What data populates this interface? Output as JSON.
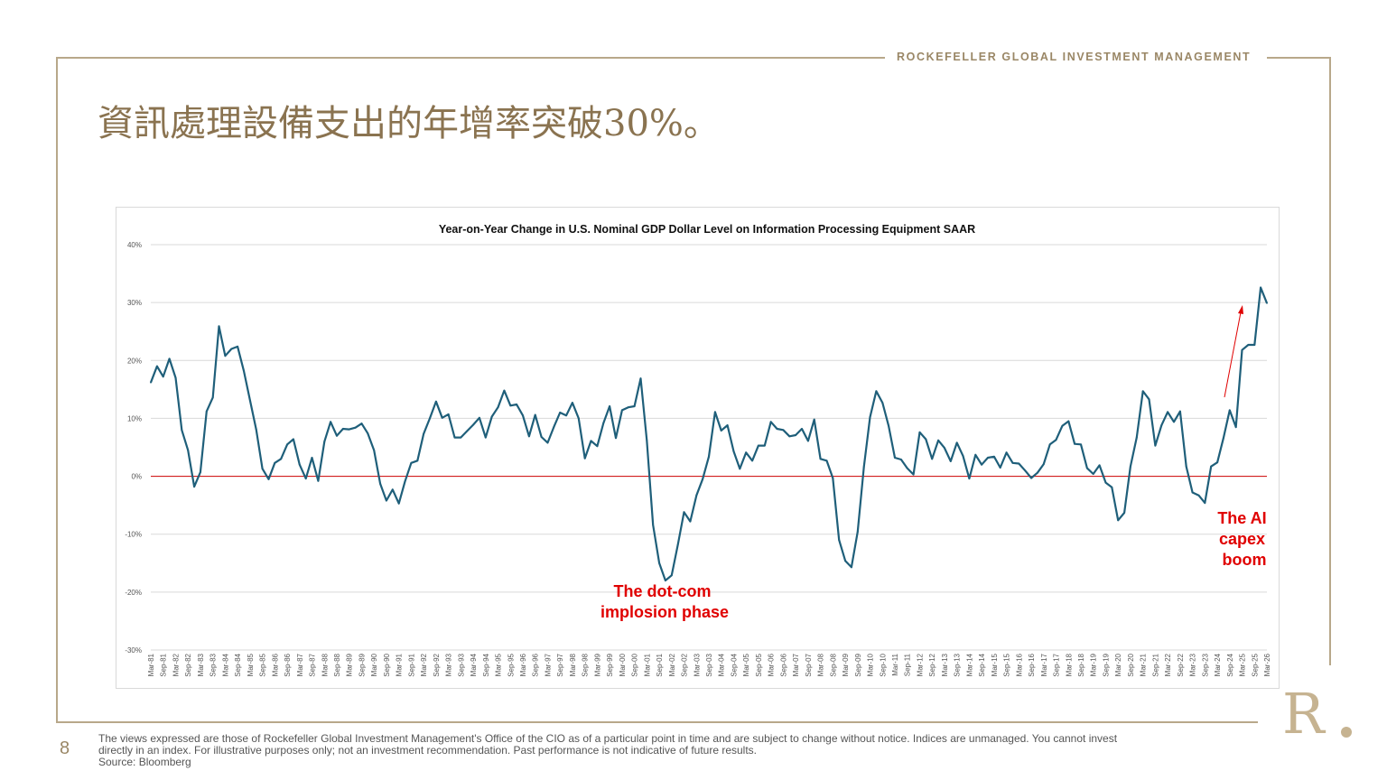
{
  "header": {
    "brand": "ROCKEFELLER GLOBAL INVESTMENT MANAGEMENT",
    "title": "資訊處理設備支出的年增率突破30%。"
  },
  "footer": {
    "page_number": "8",
    "disclaimer_line1": "The views expressed are those of Rockefeller Global Investment Management's Office of the CIO as of a particular point in time and are subject to change without notice. Indices are unmanaged. You cannot invest",
    "disclaimer_line2": "directly in an index. For illustrative purposes only; not an investment recommendation. Past performance is not indicative of future results.",
    "source": "Source: Bloomberg",
    "logo": "R"
  },
  "colors": {
    "gold": "#9a8766",
    "series": "#1f5f7a",
    "zero_line": "#cc0000",
    "annotation": "#e00000",
    "grid": "#d9d9d9"
  },
  "chart_data": {
    "type": "line",
    "title": "Year-on-Year Change in U.S. Nominal GDP Dollar Level on Information Processing Equipment SAAR",
    "xlabel": "",
    "ylabel": "",
    "ylim": [
      -30,
      40
    ],
    "y_ticks": [
      40,
      30,
      20,
      10,
      0,
      -10,
      -20,
      -30
    ],
    "y_tick_labels": [
      "40%",
      "30%",
      "20%",
      "10%",
      "0%",
      "-10%",
      "-20%",
      "-30%"
    ],
    "grid": true,
    "reference_line": 0,
    "x_tick_labels": [
      "Mar-81",
      "Sep-81",
      "Mar-82",
      "Sep-82",
      "Mar-83",
      "Sep-83",
      "Mar-84",
      "Sep-84",
      "Mar-85",
      "Sep-85",
      "Mar-86",
      "Sep-86",
      "Mar-87",
      "Sep-87",
      "Mar-88",
      "Sep-88",
      "Mar-89",
      "Sep-89",
      "Mar-90",
      "Sep-90",
      "Mar-91",
      "Sep-91",
      "Mar-92",
      "Sep-92",
      "Mar-93",
      "Sep-93",
      "Mar-94",
      "Sep-94",
      "Mar-95",
      "Sep-95",
      "Mar-96",
      "Sep-96",
      "Mar-97",
      "Sep-97",
      "Mar-98",
      "Sep-98",
      "Mar-99",
      "Sep-99",
      "Mar-00",
      "Sep-00",
      "Mar-01",
      "Sep-01",
      "Mar-02",
      "Sep-02",
      "Mar-03",
      "Sep-03",
      "Mar-04",
      "Sep-04",
      "Mar-05",
      "Sep-05",
      "Mar-06",
      "Sep-06",
      "Mar-07",
      "Sep-07",
      "Mar-08",
      "Sep-08",
      "Mar-09",
      "Sep-09",
      "Mar-10",
      "Sep-10",
      "Mar-11",
      "Sep-11",
      "Mar-12",
      "Sep-12",
      "Mar-13",
      "Sep-13",
      "Mar-14",
      "Sep-14",
      "Mar-15",
      "Sep-15",
      "Mar-16",
      "Sep-16",
      "Mar-17",
      "Sep-17",
      "Mar-18",
      "Sep-18",
      "Mar-19",
      "Sep-19",
      "Mar-20",
      "Sep-20",
      "Mar-21",
      "Sep-21",
      "Mar-22",
      "Sep-22",
      "Mar-23",
      "Sep-23",
      "Mar-24",
      "Sep-24",
      "Mar-25",
      "Sep-25",
      "Mar-26"
    ],
    "series": [
      {
        "values": [
          16.2,
          19.0,
          17.2,
          20.3,
          17.0,
          8.0,
          4.5,
          -1.8,
          0.7,
          11.2,
          13.6,
          25.9,
          20.8,
          22.0,
          22.4,
          18.2,
          13.1,
          8.1,
          1.3,
          -0.5,
          2.3,
          3.0,
          5.5,
          6.4,
          2.0,
          -0.4,
          3.2,
          -0.8,
          6.0,
          9.4,
          7.0,
          8.2,
          8.1,
          8.4,
          9.1,
          7.4,
          4.5,
          -1.3,
          -4.2,
          -2.3,
          -4.7,
          -0.9,
          2.3,
          2.7,
          7.3,
          10.0,
          12.9,
          10.1,
          10.7,
          6.7,
          6.7,
          7.8,
          8.9,
          10.1,
          6.7,
          10.3,
          11.9,
          14.8,
          12.2,
          12.4,
          10.5,
          6.9,
          10.6,
          6.8,
          5.8,
          8.5,
          11.0,
          10.5,
          12.7,
          10.0,
          3.1,
          6.1,
          5.2,
          9.2,
          12.1,
          6.6,
          11.4,
          11.9,
          12.1,
          16.9,
          6.2,
          -8.4,
          -15.0,
          -18.0,
          -17.1,
          -11.8,
          -6.2,
          -7.8,
          -3.3,
          -0.5,
          3.4,
          11.1,
          7.9,
          8.8,
          4.3,
          1.3,
          4.1,
          2.7,
          5.3,
          5.3,
          9.4,
          8.2,
          8.0,
          6.9,
          7.1,
          8.2,
          6.1,
          9.8,
          3.0,
          2.7,
          -0.3,
          -11.0,
          -14.6,
          -15.7,
          -9.6,
          1.6,
          10.2,
          14.7,
          12.7,
          8.7,
          3.2,
          2.9,
          1.4,
          0.3,
          7.6,
          6.4,
          3.0,
          6.2,
          4.9,
          2.6,
          5.8,
          3.5,
          -0.4,
          3.7,
          2.0,
          3.2,
          3.4,
          1.5,
          4.1,
          2.3,
          2.2,
          1.0,
          -0.3,
          0.6,
          2.1,
          5.5,
          6.3,
          8.7,
          9.5,
          5.6,
          5.5,
          1.4,
          0.4,
          1.9,
          -1.1,
          -1.9,
          -7.6,
          -6.3,
          1.7,
          6.7,
          14.7,
          13.3,
          5.3,
          8.8,
          11.1,
          9.4,
          11.2,
          1.7,
          -2.8,
          -3.3,
          -4.6,
          1.7,
          2.4,
          6.6,
          11.4,
          8.5,
          21.8,
          22.7,
          22.7,
          32.6,
          29.9
        ]
      }
    ],
    "annotations": [
      {
        "lines": [
          "The dot-com",
          "implosion phase"
        ]
      },
      {
        "lines": [
          "The AI",
          "capex",
          "boom"
        ]
      }
    ]
  }
}
